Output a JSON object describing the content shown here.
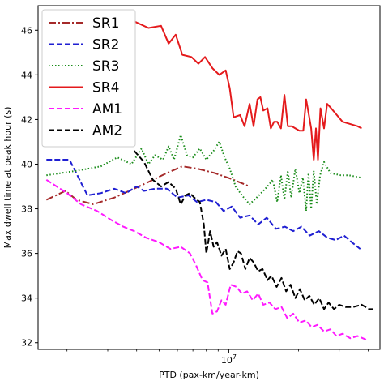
{
  "chart_data": {
    "type": "line",
    "title": "",
    "xlabel": "PTD (pax-km/year-km)",
    "ylabel": "Max dwell time at peak hour (s)",
    "xscale": "log",
    "xlim": [
      1500000,
      45000000
    ],
    "ylim": [
      31.7,
      47.1
    ],
    "xticks": [
      {
        "value": 10000000,
        "label": "10^7"
      }
    ],
    "yticks": [
      32,
      34,
      36,
      38,
      40,
      42,
      44,
      46
    ],
    "grid": false,
    "legend": {
      "placement": "top-left"
    },
    "series": [
      {
        "name": "SR1",
        "color": "#a52a2a",
        "dash": "dashdot",
        "points": [
          [
            1630000,
            38.4
          ],
          [
            1970000,
            38.8
          ],
          [
            2200000,
            38.4
          ],
          [
            2600000,
            38.2
          ],
          [
            3200000,
            38.5
          ],
          [
            3900000,
            38.9
          ],
          [
            4500000,
            39.2
          ],
          [
            5400000,
            39.6
          ],
          [
            6300000,
            39.9
          ],
          [
            7300000,
            39.8
          ],
          [
            8700000,
            39.6
          ],
          [
            10500000,
            39.3
          ],
          [
            12300000,
            39.0
          ]
        ]
      },
      {
        "name": "SR2",
        "color": "#1f1fd2",
        "dash": "dashed",
        "points": [
          [
            1630000,
            40.2
          ],
          [
            2050000,
            40.2
          ],
          [
            2450000,
            38.6
          ],
          [
            2800000,
            38.7
          ],
          [
            3200000,
            38.9
          ],
          [
            3600000,
            38.7
          ],
          [
            4000000,
            39.0
          ],
          [
            4300000,
            38.8
          ],
          [
            4800000,
            38.9
          ],
          [
            5400000,
            38.9
          ],
          [
            6000000,
            38.5
          ],
          [
            6700000,
            38.6
          ],
          [
            7300000,
            38.3
          ],
          [
            8000000,
            38.4
          ],
          [
            8800000,
            38.3
          ],
          [
            9500000,
            37.9
          ],
          [
            10300000,
            38.1
          ],
          [
            11200000,
            37.6
          ],
          [
            12300000,
            37.7
          ],
          [
            13400000,
            37.3
          ],
          [
            14600000,
            37.6
          ],
          [
            16000000,
            37.1
          ],
          [
            17500000,
            37.2
          ],
          [
            19000000,
            37.0
          ],
          [
            20600000,
            37.2
          ],
          [
            22400000,
            36.8
          ],
          [
            24500000,
            37.0
          ],
          [
            26700000,
            36.7
          ],
          [
            29000000,
            36.6
          ],
          [
            31500000,
            36.8
          ],
          [
            34000000,
            36.5
          ],
          [
            37000000,
            36.2
          ]
        ]
      },
      {
        "name": "SR3",
        "color": "#1a8c1a",
        "dash": "dotted",
        "points": [
          [
            1630000,
            39.5
          ],
          [
            2200000,
            39.7
          ],
          [
            2800000,
            39.9
          ],
          [
            3300000,
            40.3
          ],
          [
            3800000,
            40.0
          ],
          [
            4200000,
            40.7
          ],
          [
            4500000,
            40.0
          ],
          [
            4800000,
            40.4
          ],
          [
            5200000,
            40.2
          ],
          [
            5500000,
            40.8
          ],
          [
            5800000,
            40.2
          ],
          [
            6200000,
            41.3
          ],
          [
            6600000,
            40.4
          ],
          [
            7000000,
            40.3
          ],
          [
            7500000,
            40.7
          ],
          [
            8000000,
            40.2
          ],
          [
            8600000,
            40.6
          ],
          [
            9100000,
            41.0
          ],
          [
            9600000,
            40.3
          ],
          [
            10100000,
            39.8
          ],
          [
            10700000,
            39.0
          ],
          [
            11400000,
            38.6
          ],
          [
            12300000,
            38.2
          ],
          [
            13500000,
            38.6
          ],
          [
            14700000,
            39.0
          ],
          [
            15500000,
            39.3
          ],
          [
            16200000,
            38.3
          ],
          [
            16800000,
            39.5
          ],
          [
            17400000,
            38.4
          ],
          [
            18000000,
            39.7
          ],
          [
            18600000,
            38.5
          ],
          [
            19400000,
            39.8
          ],
          [
            20200000,
            38.7
          ],
          [
            20900000,
            39.4
          ],
          [
            21600000,
            37.9
          ],
          [
            22100000,
            39.6
          ],
          [
            22700000,
            38.0
          ],
          [
            23300000,
            39.7
          ],
          [
            24000000,
            38.2
          ],
          [
            24800000,
            39.5
          ],
          [
            25800000,
            40.1
          ],
          [
            27500000,
            39.6
          ],
          [
            30500000,
            39.5
          ],
          [
            33000000,
            39.5
          ],
          [
            37000000,
            39.4
          ]
        ]
      },
      {
        "name": "SR4",
        "color": "#e41a1c",
        "dash": "solid",
        "points": [
          [
            3900000,
            46.4
          ],
          [
            4500000,
            46.1
          ],
          [
            5100000,
            46.2
          ],
          [
            5500000,
            45.4
          ],
          [
            5900000,
            45.8
          ],
          [
            6300000,
            44.9
          ],
          [
            6900000,
            44.8
          ],
          [
            7400000,
            44.5
          ],
          [
            7900000,
            44.8
          ],
          [
            8500000,
            44.3
          ],
          [
            9100000,
            44.0
          ],
          [
            9700000,
            44.2
          ],
          [
            10100000,
            43.4
          ],
          [
            10500000,
            42.1
          ],
          [
            11200000,
            42.2
          ],
          [
            11700000,
            41.7
          ],
          [
            12300000,
            42.7
          ],
          [
            12800000,
            41.7
          ],
          [
            13300000,
            42.9
          ],
          [
            13700000,
            43.0
          ],
          [
            14100000,
            42.4
          ],
          [
            14700000,
            42.5
          ],
          [
            15200000,
            41.6
          ],
          [
            15700000,
            41.9
          ],
          [
            16200000,
            41.9
          ],
          [
            16800000,
            41.6
          ],
          [
            17400000,
            43.1
          ],
          [
            18000000,
            41.7
          ],
          [
            18700000,
            41.7
          ],
          [
            19400000,
            41.6
          ],
          [
            20200000,
            41.5
          ],
          [
            21000000,
            41.5
          ],
          [
            21600000,
            42.9
          ],
          [
            22200000,
            42.2
          ],
          [
            22700000,
            41.6
          ],
          [
            23300000,
            40.2
          ],
          [
            23800000,
            41.6
          ],
          [
            24300000,
            40.2
          ],
          [
            24900000,
            42.5
          ],
          [
            25800000,
            41.6
          ],
          [
            26600000,
            42.7
          ],
          [
            27700000,
            42.5
          ],
          [
            31000000,
            41.9
          ],
          [
            36000000,
            41.7
          ],
          [
            37500000,
            41.6
          ]
        ]
      },
      {
        "name": "AM1",
        "color": "#ff1aff",
        "dash": "dashed",
        "points": [
          [
            1630000,
            39.3
          ],
          [
            2000000,
            38.7
          ],
          [
            2300000,
            38.2
          ],
          [
            2700000,
            37.9
          ],
          [
            3100000,
            37.5
          ],
          [
            3500000,
            37.2
          ],
          [
            3900000,
            37.0
          ],
          [
            4400000,
            36.7
          ],
          [
            5000000,
            36.5
          ],
          [
            5600000,
            36.2
          ],
          [
            6200000,
            36.3
          ],
          [
            6800000,
            36.0
          ],
          [
            7200000,
            35.5
          ],
          [
            7700000,
            34.8
          ],
          [
            8100000,
            34.7
          ],
          [
            8500000,
            33.3
          ],
          [
            8900000,
            33.4
          ],
          [
            9300000,
            33.9
          ],
          [
            9700000,
            33.7
          ],
          [
            10200000,
            34.6
          ],
          [
            10800000,
            34.5
          ],
          [
            11400000,
            34.2
          ],
          [
            12000000,
            34.3
          ],
          [
            12700000,
            33.9
          ],
          [
            13400000,
            34.2
          ],
          [
            14100000,
            33.7
          ],
          [
            15000000,
            33.8
          ],
          [
            15900000,
            33.5
          ],
          [
            16900000,
            33.6
          ],
          [
            17900000,
            33.1
          ],
          [
            19000000,
            33.3
          ],
          [
            20200000,
            32.9
          ],
          [
            21500000,
            33.0
          ],
          [
            22800000,
            32.7
          ],
          [
            24200000,
            32.8
          ],
          [
            25800000,
            32.5
          ],
          [
            27500000,
            32.6
          ],
          [
            29200000,
            32.3
          ],
          [
            31000000,
            32.4
          ],
          [
            33500000,
            32.2
          ],
          [
            36000000,
            32.3
          ],
          [
            40000000,
            32.1
          ]
        ]
      },
      {
        "name": "AM2",
        "color": "#000000",
        "dash": "dashed",
        "points": [
          [
            3900000,
            40.6
          ],
          [
            4300000,
            40.1
          ],
          [
            4700000,
            39.3
          ],
          [
            5100000,
            39.0
          ],
          [
            5500000,
            39.2
          ],
          [
            5900000,
            38.9
          ],
          [
            6200000,
            38.2
          ],
          [
            6500000,
            38.6
          ],
          [
            6800000,
            38.7
          ],
          [
            7100000,
            38.5
          ],
          [
            7500000,
            38.3
          ],
          [
            7800000,
            37.3
          ],
          [
            8000000,
            36.0
          ],
          [
            8300000,
            37.0
          ],
          [
            8600000,
            36.3
          ],
          [
            8900000,
            36.5
          ],
          [
            9300000,
            35.9
          ],
          [
            9700000,
            36.2
          ],
          [
            10100000,
            35.3
          ],
          [
            10500000,
            35.6
          ],
          [
            10900000,
            36.1
          ],
          [
            11300000,
            36.0
          ],
          [
            11800000,
            35.3
          ],
          [
            12300000,
            35.8
          ],
          [
            12800000,
            35.6
          ],
          [
            13400000,
            35.2
          ],
          [
            14000000,
            35.3
          ],
          [
            14700000,
            34.8
          ],
          [
            15300000,
            35.0
          ],
          [
            16100000,
            34.5
          ],
          [
            16900000,
            34.9
          ],
          [
            17700000,
            34.3
          ],
          [
            18500000,
            34.6
          ],
          [
            19400000,
            34.0
          ],
          [
            20300000,
            34.4
          ],
          [
            21300000,
            33.9
          ],
          [
            22300000,
            34.1
          ],
          [
            23400000,
            33.7
          ],
          [
            24600000,
            34.0
          ],
          [
            25800000,
            33.5
          ],
          [
            27000000,
            33.8
          ],
          [
            28500000,
            33.5
          ],
          [
            30000000,
            33.7
          ],
          [
            32000000,
            33.6
          ],
          [
            34500000,
            33.6
          ],
          [
            37500000,
            33.7
          ],
          [
            40500000,
            33.5
          ],
          [
            42000000,
            33.5
          ]
        ]
      }
    ]
  }
}
